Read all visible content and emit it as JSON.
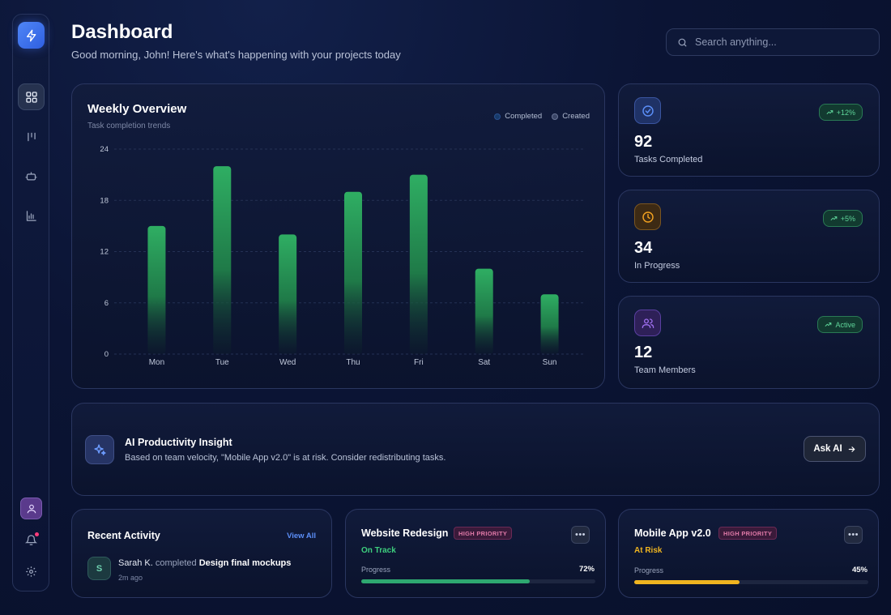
{
  "header": {
    "title": "Dashboard",
    "subtitle": "Good morning, John!  Here's what's happening with your projects today"
  },
  "search": {
    "placeholder": "Search anything..."
  },
  "sidebar": {
    "icons": [
      "bolt-icon",
      "dashboard-icon",
      "kanban-icon",
      "robot-icon",
      "bar-chart-icon",
      "user-icon",
      "bell-icon",
      "gear-icon"
    ],
    "active": "dashboard-icon"
  },
  "chart": {
    "title": "Weekly Overview",
    "subtitle": "Task completion trends",
    "legend": {
      "completed": "Completed",
      "created": "Created"
    }
  },
  "chart_data": {
    "type": "bar",
    "categories": [
      "Mon",
      "Tue",
      "Wed",
      "Thu",
      "Fri",
      "Sat",
      "Sun"
    ],
    "series": [
      {
        "name": "Completed",
        "values": [
          15,
          22,
          14,
          19,
          21,
          10,
          7
        ]
      }
    ],
    "ylim": [
      0,
      24
    ],
    "yticks": [
      0,
      6,
      12,
      18,
      24
    ],
    "grid": true,
    "legend_position": "top-right",
    "colors": {
      "completed": "#2ea860",
      "created": "#3a4566"
    }
  },
  "stats": [
    {
      "value": "92",
      "label": "Tasks Completed",
      "badge": "+12%",
      "icon": "check-circle-icon",
      "color": "#5b8ef7"
    },
    {
      "value": "34",
      "label": "In Progress",
      "badge": "+5%",
      "icon": "clock-icon",
      "color": "#f0a020"
    },
    {
      "value": "12",
      "label": "Team Members",
      "badge": "Active",
      "icon": "users-icon",
      "color": "#a070f0"
    }
  ],
  "insight": {
    "title": "AI Productivity Insight",
    "text": "Based on team velocity, \"Mobile App v2.0\" is at risk. Consider redistributing tasks.",
    "button": "Ask AI"
  },
  "activity": {
    "title": "Recent Activity",
    "view_all": "View All",
    "items": [
      {
        "initial": "S",
        "user": "Sarah K.",
        "action": "completed",
        "target": "Design final mockups",
        "time": "2m ago"
      }
    ]
  },
  "projects": [
    {
      "name": "Website Redesign",
      "priority": "HIGH PRIORITY",
      "status": "On Track",
      "status_color": "#3ecf7e",
      "progress_label": "Progress",
      "progress_text": "72%",
      "progress": 0.72,
      "bar_color": "#2ea870"
    },
    {
      "name": "Mobile App v2.0",
      "priority": "HIGH PRIORITY",
      "status": "At Risk",
      "status_color": "#f0b520",
      "progress_label": "Progress",
      "progress_text": "45%",
      "progress": 0.45,
      "bar_color": "#f0b520"
    }
  ]
}
